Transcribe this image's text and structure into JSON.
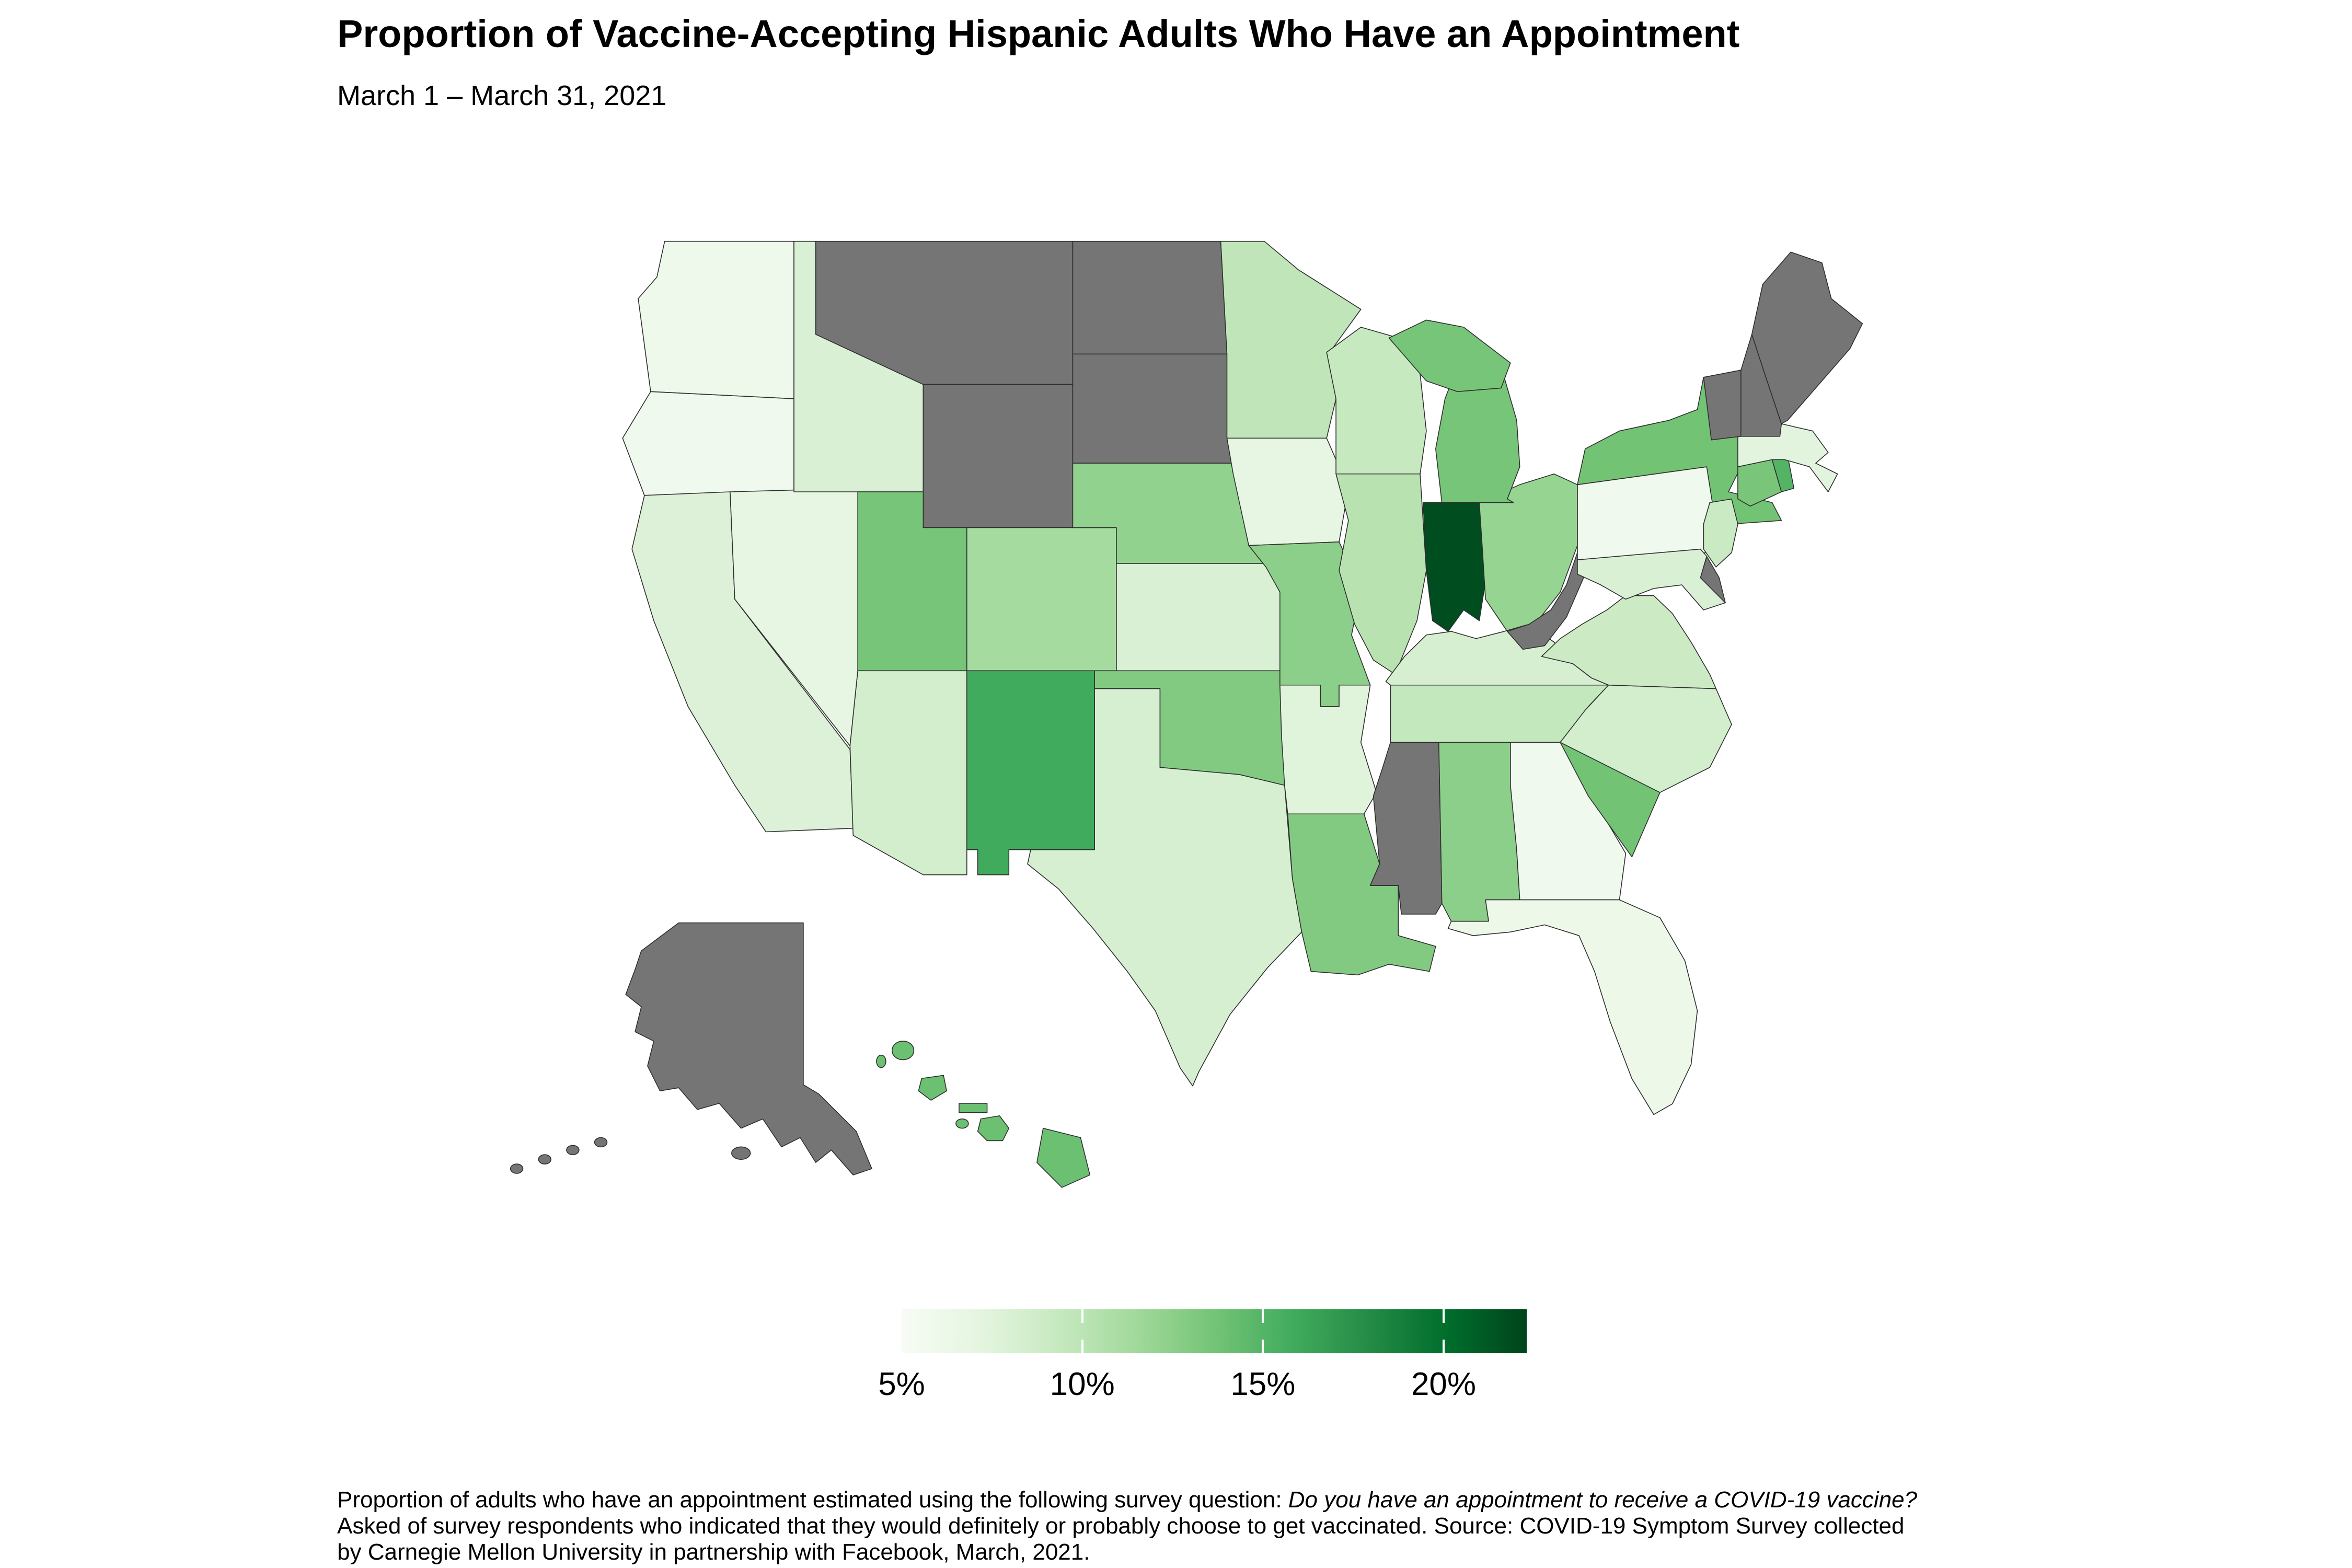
{
  "title": "Proportion of Vaccine-Accepting Hispanic Adults Who Have an Appointment",
  "subtitle": "March 1 – March 31, 2021",
  "caption": {
    "line1_plain": "Proportion of adults who have an appointment estimated using the following survey question: ",
    "line1_italic": "Do you have an appointment to receive a COVID-19 vaccine?",
    "line2": "Asked of survey respondents who indicated that they would definitely or probably choose to get vaccinated. Source: COVID-19 Symptom Survey collected",
    "line3": "by Carnegie Mellon University in partnership with Facebook, March, 2021."
  },
  "legend": {
    "tick_labels": [
      "5%",
      "10%",
      "15%",
      "20%"
    ],
    "tick_values": [
      5,
      10,
      15,
      20
    ],
    "tick_marks": [
      10,
      15,
      20
    ],
    "domain": [
      5,
      22.3
    ],
    "palette": [
      "#f7fcf5",
      "#e5f5e0",
      "#c7e9c0",
      "#a1d99b",
      "#74c476",
      "#41ab5d",
      "#238b45",
      "#006d2c",
      "#00441b"
    ],
    "no_data_color": "#757575",
    "border_color": "#2e2e2e"
  },
  "chart_data": {
    "type": "heatmap",
    "subtype": "us-state-choropleth",
    "unit": "percent",
    "title": "Proportion of Vaccine-Accepting Hispanic Adults Who Have an Appointment",
    "date_range": "March 1 – March 31, 2021",
    "value_domain": [
      5,
      22.3
    ],
    "states": [
      {
        "abbr": "AL",
        "name": "Alabama",
        "value": 12.5
      },
      {
        "abbr": "AK",
        "name": "Alaska",
        "value": null
      },
      {
        "abbr": "AZ",
        "name": "Arizona",
        "value": 8.5
      },
      {
        "abbr": "AR",
        "name": "Arkansas",
        "value": 7.5
      },
      {
        "abbr": "CA",
        "name": "California",
        "value": 7.8
      },
      {
        "abbr": "CO",
        "name": "Colorado",
        "value": 11.2
      },
      {
        "abbr": "CT",
        "name": "Connecticut",
        "value": 13.4
      },
      {
        "abbr": "DE",
        "name": "Delaware",
        "value": null
      },
      {
        "abbr": "FL",
        "name": "Florida",
        "value": 6.2
      },
      {
        "abbr": "GA",
        "name": "Georgia",
        "value": 5.8
      },
      {
        "abbr": "HI",
        "name": "Hawaii",
        "value": 14
      },
      {
        "abbr": "ID",
        "name": "Idaho",
        "value": 8
      },
      {
        "abbr": "IL",
        "name": "Illinois",
        "value": 10.2
      },
      {
        "abbr": "IN",
        "name": "Indiana",
        "value": 21.8
      },
      {
        "abbr": "IA",
        "name": "Iowa",
        "value": 7
      },
      {
        "abbr": "KS",
        "name": "Kansas",
        "value": 8
      },
      {
        "abbr": "KY",
        "name": "Kentucky",
        "value": 8.2
      },
      {
        "abbr": "LA",
        "name": "Louisiana",
        "value": 13
      },
      {
        "abbr": "ME",
        "name": "Maine",
        "value": null
      },
      {
        "abbr": "MD",
        "name": "Maryland",
        "value": 8
      },
      {
        "abbr": "MA",
        "name": "Massachusetts",
        "value": 7.3
      },
      {
        "abbr": "MI",
        "name": "Michigan",
        "value": 13.5
      },
      {
        "abbr": "MN",
        "name": "Minnesota",
        "value": 9.8
      },
      {
        "abbr": "MS",
        "name": "Mississippi",
        "value": null
      },
      {
        "abbr": "MO",
        "name": "Missouri",
        "value": 12.5
      },
      {
        "abbr": "MT",
        "name": "Montana",
        "value": null
      },
      {
        "abbr": "NE",
        "name": "Nebraska",
        "value": 12.2
      },
      {
        "abbr": "NV",
        "name": "Nevada",
        "value": 7
      },
      {
        "abbr": "NH",
        "name": "New Hampshire",
        "value": null
      },
      {
        "abbr": "NJ",
        "name": "New Jersey",
        "value": 9.2
      },
      {
        "abbr": "NM",
        "name": "New Mexico",
        "value": 15.8
      },
      {
        "abbr": "NY",
        "name": "New York",
        "value": 13.7
      },
      {
        "abbr": "NC",
        "name": "North Carolina",
        "value": 8.5
      },
      {
        "abbr": "ND",
        "name": "North Dakota",
        "value": null
      },
      {
        "abbr": "OH",
        "name": "Ohio",
        "value": 12
      },
      {
        "abbr": "OK",
        "name": "Oklahoma",
        "value": 13
      },
      {
        "abbr": "OR",
        "name": "Oregon",
        "value": 5.8
      },
      {
        "abbr": "PA",
        "name": "Pennsylvania",
        "value": 5.8
      },
      {
        "abbr": "RI",
        "name": "Rhode Island",
        "value": 15
      },
      {
        "abbr": "SC",
        "name": "South Carolina",
        "value": 13.7
      },
      {
        "abbr": "SD",
        "name": "South Dakota",
        "value": null
      },
      {
        "abbr": "TN",
        "name": "Tennessee",
        "value": 9.5
      },
      {
        "abbr": "TX",
        "name": "Texas",
        "value": 8.2
      },
      {
        "abbr": "UT",
        "name": "Utah",
        "value": 13.5
      },
      {
        "abbr": "VT",
        "name": "Vermont",
        "value": null
      },
      {
        "abbr": "VA",
        "name": "Virginia",
        "value": 9
      },
      {
        "abbr": "WA",
        "name": "Washington",
        "value": 6
      },
      {
        "abbr": "WV",
        "name": "West Virginia",
        "value": null
      },
      {
        "abbr": "WI",
        "name": "Wisconsin",
        "value": 9.3
      },
      {
        "abbr": "WY",
        "name": "Wyoming",
        "value": null
      }
    ]
  }
}
